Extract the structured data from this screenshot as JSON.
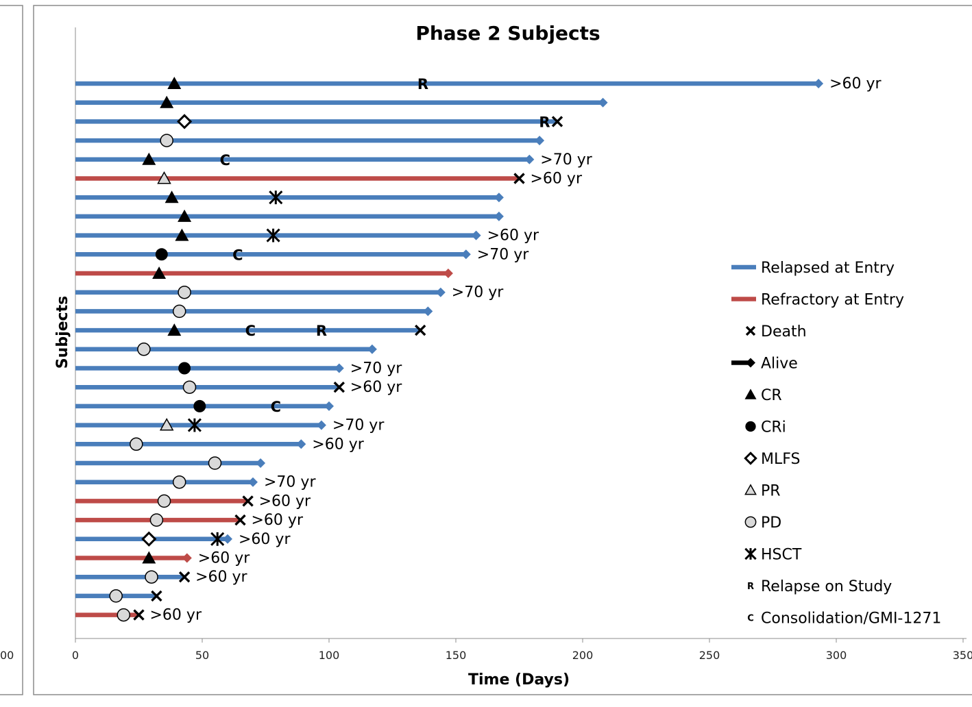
{
  "chart_data": {
    "type": "swimmer",
    "title": "Phase 2 Subjects",
    "xlabel": "Time (Days)",
    "ylabel": "Subjects",
    "xlim": [
      0,
      350
    ],
    "xticks": [
      0,
      50,
      100,
      150,
      200,
      250,
      300,
      350
    ],
    "left_panel_partial_tick": "00",
    "colors": {
      "relapsed": "#4a7ebb",
      "refractory": "#be4b48",
      "marker": "#000000",
      "gray_fill": "#d9d9d9"
    },
    "legend": [
      {
        "key": "relapsed",
        "label": "Relapsed at Entry"
      },
      {
        "key": "refractory",
        "label": "Refractory at Entry"
      },
      {
        "key": "death",
        "label": "Death"
      },
      {
        "key": "alive",
        "label": "Alive"
      },
      {
        "key": "CR",
        "label": "CR"
      },
      {
        "key": "CRi",
        "label": "CRi"
      },
      {
        "key": "MLFS",
        "label": "MLFS"
      },
      {
        "key": "PR",
        "label": "PR"
      },
      {
        "key": "PD",
        "label": "PD"
      },
      {
        "key": "HSCT",
        "label": "HSCT"
      },
      {
        "key": "R",
        "label": "Relapse on Study",
        "symbol": "R"
      },
      {
        "key": "C",
        "label": "Consolidation/GMI-1271",
        "symbol": "C"
      }
    ],
    "subjects": [
      {
        "group": "relapsed",
        "end": 293,
        "outcome": "alive",
        "response": "CR",
        "response_day": 39,
        "letters": [
          {
            "symbol": "R",
            "day": 137
          }
        ],
        "hsct": null,
        "age": ">60 yr"
      },
      {
        "group": "relapsed",
        "end": 208,
        "outcome": "alive",
        "response": "CR",
        "response_day": 36,
        "letters": [],
        "hsct": null,
        "age": ""
      },
      {
        "group": "relapsed",
        "end": 190,
        "outcome": "death",
        "response": "MLFS",
        "response_day": 43,
        "letters": [
          {
            "symbol": "R",
            "day": 185
          }
        ],
        "hsct": null,
        "age": ""
      },
      {
        "group": "relapsed",
        "end": 183,
        "outcome": "alive",
        "response": "PD",
        "response_day": 36,
        "letters": [],
        "hsct": null,
        "age": ""
      },
      {
        "group": "relapsed",
        "end": 179,
        "outcome": "alive",
        "response": "CR",
        "response_day": 29,
        "letters": [
          {
            "symbol": "C",
            "day": 59
          }
        ],
        "hsct": null,
        "age": ">70 yr"
      },
      {
        "group": "refractory",
        "end": 175,
        "outcome": "death",
        "response": "PR",
        "response_day": 35,
        "letters": [],
        "hsct": null,
        "age": ">60 yr"
      },
      {
        "group": "relapsed",
        "end": 167,
        "outcome": "alive",
        "response": "CR",
        "response_day": 38,
        "letters": [],
        "hsct": 79,
        "age": ""
      },
      {
        "group": "relapsed",
        "end": 167,
        "outcome": "alive",
        "response": "CR",
        "response_day": 43,
        "letters": [],
        "hsct": null,
        "age": ""
      },
      {
        "group": "relapsed",
        "end": 158,
        "outcome": "alive",
        "response": "CR",
        "response_day": 42,
        "letters": [],
        "hsct": 78,
        "age": ">60 yr"
      },
      {
        "group": "relapsed",
        "end": 154,
        "outcome": "alive",
        "response": "CRi",
        "response_day": 34,
        "letters": [
          {
            "symbol": "C",
            "day": 64
          }
        ],
        "hsct": null,
        "age": ">70 yr"
      },
      {
        "group": "refractory",
        "end": 147,
        "outcome": "alive",
        "response": "CR",
        "response_day": 33,
        "letters": [],
        "hsct": null,
        "age": ""
      },
      {
        "group": "relapsed",
        "end": 144,
        "outcome": "alive",
        "response": "PD",
        "response_day": 43,
        "letters": [],
        "hsct": null,
        "age": ">70 yr"
      },
      {
        "group": "relapsed",
        "end": 139,
        "outcome": "alive",
        "response": "PD",
        "response_day": 41,
        "letters": [],
        "hsct": null,
        "age": ""
      },
      {
        "group": "relapsed",
        "end": 136,
        "outcome": "death",
        "response": "CR",
        "response_day": 39,
        "letters": [
          {
            "symbol": "C",
            "day": 69
          },
          {
            "symbol": "R",
            "day": 97
          }
        ],
        "hsct": null,
        "age": ""
      },
      {
        "group": "relapsed",
        "end": 117,
        "outcome": "alive",
        "response": "PD",
        "response_day": 27,
        "letters": [],
        "hsct": null,
        "age": ""
      },
      {
        "group": "relapsed",
        "end": 104,
        "outcome": "alive",
        "response": "CRi",
        "response_day": 43,
        "letters": [],
        "hsct": null,
        "age": ">70 yr"
      },
      {
        "group": "relapsed",
        "end": 104,
        "outcome": "death",
        "response": "PD",
        "response_day": 45,
        "letters": [],
        "hsct": null,
        "age": ">60 yr"
      },
      {
        "group": "relapsed",
        "end": 100,
        "outcome": "alive",
        "response": "CRi",
        "response_day": 49,
        "letters": [
          {
            "symbol": "C",
            "day": 79
          }
        ],
        "hsct": null,
        "age": ""
      },
      {
        "group": "relapsed",
        "end": 97,
        "outcome": "alive",
        "response": "PR",
        "response_day": 36,
        "letters": [],
        "hsct": 47,
        "age": ">70 yr"
      },
      {
        "group": "relapsed",
        "end": 89,
        "outcome": "alive",
        "response": "PD",
        "response_day": 24,
        "letters": [],
        "hsct": null,
        "age": ">60 yr"
      },
      {
        "group": "relapsed",
        "end": 73,
        "outcome": "alive",
        "response": "PD",
        "response_day": 55,
        "letters": [],
        "hsct": null,
        "age": ""
      },
      {
        "group": "relapsed",
        "end": 70,
        "outcome": "alive",
        "response": "PD",
        "response_day": 41,
        "letters": [],
        "hsct": null,
        "age": ">70 yr"
      },
      {
        "group": "refractory",
        "end": 68,
        "outcome": "death",
        "response": "PD",
        "response_day": 35,
        "letters": [],
        "hsct": null,
        "age": ">60 yr"
      },
      {
        "group": "refractory",
        "end": 65,
        "outcome": "death",
        "response": "PD",
        "response_day": 32,
        "letters": [],
        "hsct": null,
        "age": ">60 yr"
      },
      {
        "group": "relapsed",
        "end": 60,
        "outcome": "alive",
        "response": "MLFS",
        "response_day": 29,
        "letters": [],
        "hsct": 56,
        "age": ">60 yr"
      },
      {
        "group": "refractory",
        "end": 44,
        "outcome": "alive",
        "response": "CR",
        "response_day": 29,
        "letters": [],
        "hsct": null,
        "age": ">60 yr"
      },
      {
        "group": "relapsed",
        "end": 43,
        "outcome": "death",
        "response": "PD",
        "response_day": 30,
        "letters": [],
        "hsct": null,
        "age": ">60 yr"
      },
      {
        "group": "relapsed",
        "end": 32,
        "outcome": "death",
        "response": "PD",
        "response_day": 16,
        "letters": [],
        "hsct": null,
        "age": ""
      },
      {
        "group": "refractory",
        "end": 25,
        "outcome": "death",
        "response": "PD",
        "response_day": 19,
        "letters": [],
        "hsct": null,
        "age": ">60 yr"
      }
    ]
  }
}
